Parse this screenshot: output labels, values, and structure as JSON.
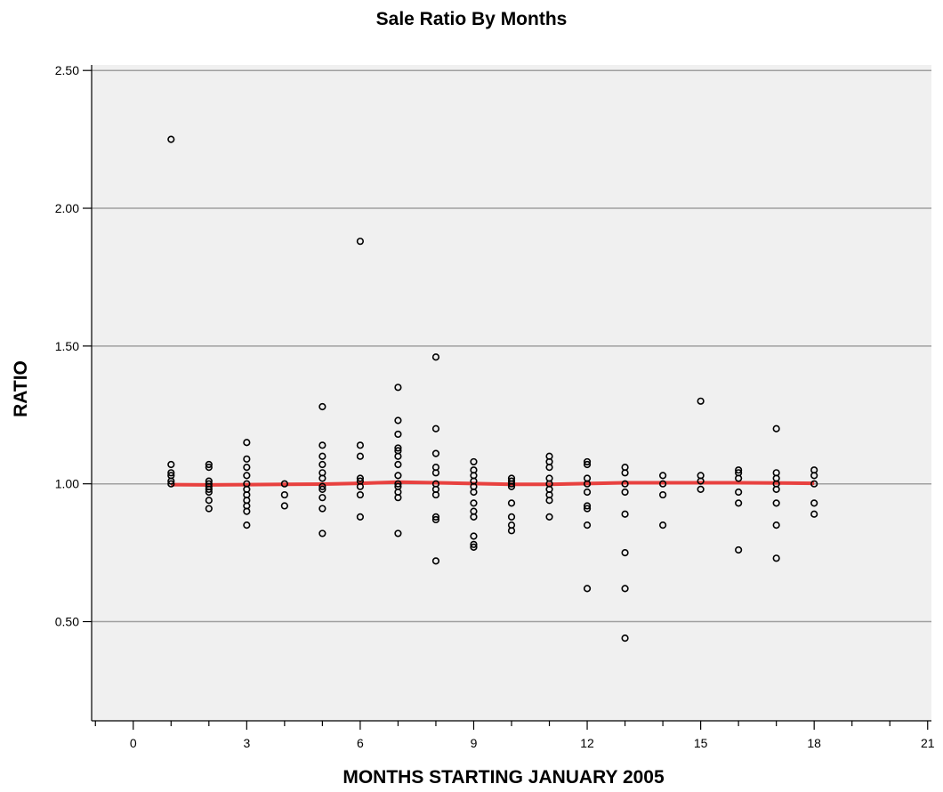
{
  "chart_data": {
    "type": "scatter",
    "title": "Sale Ratio By Months",
    "xlabel": "MONTHS STARTING JANUARY 2005",
    "ylabel": "RATIO",
    "xlim": [
      -1.1,
      21.1
    ],
    "ylim": [
      0.14,
      2.52
    ],
    "x_ticks": [
      0,
      3,
      6,
      9,
      12,
      15,
      18,
      21
    ],
    "x_minor_step": 1,
    "y_ticks": [
      0.5,
      1.0,
      1.5,
      2.0,
      2.5
    ],
    "x_tick_labels": [
      "0",
      "3",
      "6",
      "9",
      "12",
      "15",
      "18",
      "21"
    ],
    "y_tick_labels": [
      "0.50",
      "1.00",
      "1.50",
      "2.00",
      "2.50"
    ],
    "grid": "horizontal",
    "colors": {
      "plot_background": "#f0f0f0",
      "gridline": "#a0a0a0",
      "points": "#000000",
      "fit_line": "#e8413f"
    },
    "series": [
      {
        "kind": "points",
        "points": [
          [
            1,
            2.25
          ],
          [
            1,
            1.07
          ],
          [
            1,
            1.04
          ],
          [
            1,
            1.03
          ],
          [
            1,
            1.01
          ],
          [
            1,
            1.0
          ],
          [
            2,
            1.07
          ],
          [
            2,
            1.06
          ],
          [
            2,
            1.01
          ],
          [
            2,
            1.0
          ],
          [
            2,
            0.99
          ],
          [
            2,
            0.98
          ],
          [
            2,
            0.97
          ],
          [
            2,
            0.94
          ],
          [
            2,
            0.91
          ],
          [
            3,
            1.15
          ],
          [
            3,
            1.09
          ],
          [
            3,
            1.06
          ],
          [
            3,
            1.03
          ],
          [
            3,
            1.0
          ],
          [
            3,
            0.98
          ],
          [
            3,
            0.96
          ],
          [
            3,
            0.94
          ],
          [
            3,
            0.92
          ],
          [
            3,
            0.9
          ],
          [
            3,
            0.85
          ],
          [
            4,
            1.0
          ],
          [
            4,
            0.96
          ],
          [
            4,
            0.92
          ],
          [
            5,
            1.28
          ],
          [
            5,
            1.14
          ],
          [
            5,
            1.1
          ],
          [
            5,
            1.07
          ],
          [
            5,
            1.04
          ],
          [
            5,
            1.02
          ],
          [
            5,
            0.99
          ],
          [
            5,
            0.98
          ],
          [
            5,
            0.95
          ],
          [
            5,
            0.91
          ],
          [
            5,
            0.82
          ],
          [
            6,
            1.88
          ],
          [
            6,
            1.14
          ],
          [
            6,
            1.1
          ],
          [
            6,
            1.02
          ],
          [
            6,
            1.01
          ],
          [
            6,
            0.99
          ],
          [
            6,
            0.96
          ],
          [
            6,
            0.88
          ],
          [
            7,
            1.35
          ],
          [
            7,
            1.23
          ],
          [
            7,
            1.18
          ],
          [
            7,
            1.13
          ],
          [
            7,
            1.12
          ],
          [
            7,
            1.1
          ],
          [
            7,
            1.07
          ],
          [
            7,
            1.03
          ],
          [
            7,
            1.0
          ],
          [
            7,
            0.99
          ],
          [
            7,
            0.97
          ],
          [
            7,
            0.95
          ],
          [
            7,
            0.82
          ],
          [
            8,
            1.46
          ],
          [
            8,
            1.2
          ],
          [
            8,
            1.11
          ],
          [
            8,
            1.06
          ],
          [
            8,
            1.04
          ],
          [
            8,
            1.0
          ],
          [
            8,
            0.98
          ],
          [
            8,
            0.96
          ],
          [
            8,
            0.88
          ],
          [
            8,
            0.87
          ],
          [
            8,
            0.72
          ],
          [
            9,
            1.08
          ],
          [
            9,
            1.05
          ],
          [
            9,
            1.03
          ],
          [
            9,
            1.01
          ],
          [
            9,
            0.99
          ],
          [
            9,
            0.97
          ],
          [
            9,
            0.93
          ],
          [
            9,
            0.9
          ],
          [
            9,
            0.88
          ],
          [
            9,
            0.81
          ],
          [
            9,
            0.78
          ],
          [
            9,
            0.77
          ],
          [
            10,
            1.02
          ],
          [
            10,
            1.01
          ],
          [
            10,
            1.0
          ],
          [
            10,
            0.99
          ],
          [
            10,
            0.93
          ],
          [
            10,
            0.88
          ],
          [
            10,
            0.85
          ],
          [
            10,
            0.83
          ],
          [
            11,
            1.1
          ],
          [
            11,
            1.08
          ],
          [
            11,
            1.06
          ],
          [
            11,
            1.02
          ],
          [
            11,
            1.0
          ],
          [
            11,
            0.98
          ],
          [
            11,
            0.96
          ],
          [
            11,
            0.94
          ],
          [
            11,
            0.88
          ],
          [
            12,
            1.08
          ],
          [
            12,
            1.07
          ],
          [
            12,
            1.02
          ],
          [
            12,
            1.0
          ],
          [
            12,
            0.97
          ],
          [
            12,
            0.92
          ],
          [
            12,
            0.91
          ],
          [
            12,
            0.85
          ],
          [
            12,
            0.62
          ],
          [
            13,
            1.06
          ],
          [
            13,
            1.04
          ],
          [
            13,
            1.0
          ],
          [
            13,
            0.97
          ],
          [
            13,
            0.89
          ],
          [
            13,
            0.75
          ],
          [
            13,
            0.62
          ],
          [
            13,
            0.44
          ],
          [
            14,
            1.03
          ],
          [
            14,
            1.0
          ],
          [
            14,
            0.96
          ],
          [
            14,
            0.85
          ],
          [
            15,
            1.3
          ],
          [
            15,
            1.03
          ],
          [
            15,
            1.01
          ],
          [
            15,
            0.98
          ],
          [
            16,
            1.05
          ],
          [
            16,
            1.04
          ],
          [
            16,
            1.02
          ],
          [
            16,
            0.97
          ],
          [
            16,
            0.93
          ],
          [
            16,
            0.76
          ],
          [
            17,
            1.2
          ],
          [
            17,
            1.04
          ],
          [
            17,
            1.02
          ],
          [
            17,
            1.0
          ],
          [
            17,
            0.98
          ],
          [
            17,
            0.93
          ],
          [
            17,
            0.85
          ],
          [
            17,
            0.73
          ],
          [
            18,
            1.05
          ],
          [
            18,
            1.03
          ],
          [
            18,
            1.0
          ],
          [
            18,
            0.93
          ],
          [
            18,
            0.89
          ]
        ]
      },
      {
        "kind": "fit-line",
        "x": [
          1,
          2,
          3,
          4,
          5,
          6,
          7,
          8,
          9,
          10,
          11,
          12,
          13,
          14,
          15,
          16,
          17,
          18
        ],
        "y": [
          0.997,
          0.996,
          0.997,
          0.998,
          0.999,
          1.002,
          1.006,
          1.004,
          1.001,
          0.998,
          0.998,
          1.001,
          1.004,
          1.004,
          1.004,
          1.004,
          1.003,
          1.002
        ]
      }
    ]
  }
}
